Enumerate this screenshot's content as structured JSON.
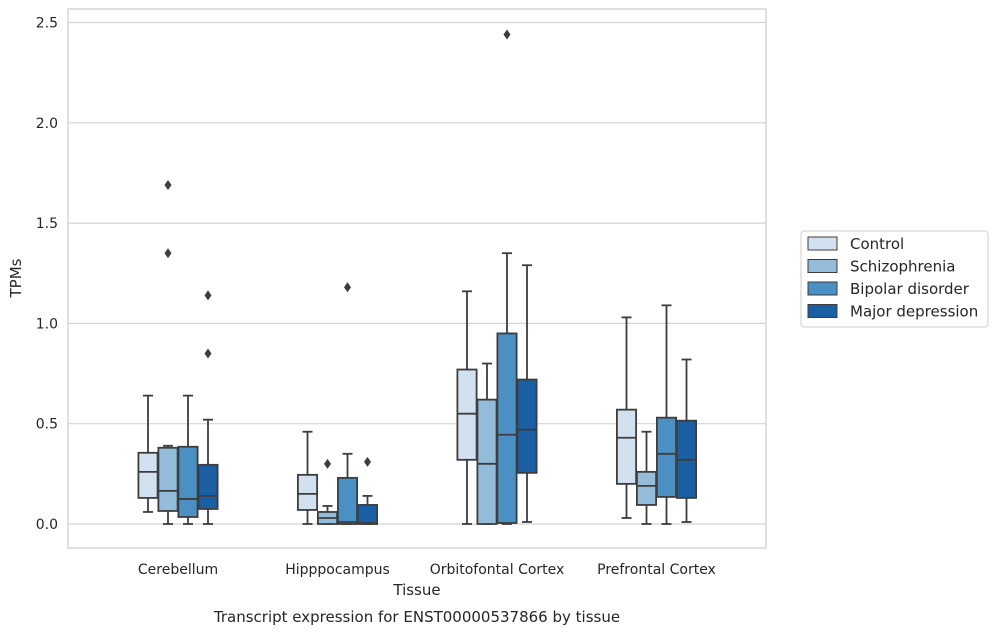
{
  "chart_data": {
    "type": "box",
    "caption": "Transcript expression for ENST00000537866 by tissue",
    "xlabel": "Tissue",
    "ylabel": "TPMs",
    "ylim": [
      -0.12,
      2.56
    ],
    "yticks": [
      0.0,
      0.5,
      1.0,
      1.5,
      2.0,
      2.5
    ],
    "ytick_labels": [
      "0.0",
      "0.5",
      "1.0",
      "1.5",
      "2.0",
      "2.5"
    ],
    "grid": "horizontal",
    "legend_position": "right",
    "categories": [
      "Cerebellum",
      "Hipppocampus",
      "Orbitofontal Cortex",
      "Prefrontal Cortex"
    ],
    "series": [
      {
        "name": "Control",
        "color": "#d1e1f0",
        "boxes": [
          {
            "whislo": 0.06,
            "q1": 0.13,
            "med": 0.26,
            "q3": 0.355,
            "whishi": 0.64,
            "fliers": []
          },
          {
            "whislo": 0.0,
            "q1": 0.07,
            "med": 0.15,
            "q3": 0.245,
            "whishi": 0.46,
            "fliers": []
          },
          {
            "whislo": 0.0,
            "q1": 0.32,
            "med": 0.55,
            "q3": 0.77,
            "whishi": 1.16,
            "fliers": []
          },
          {
            "whislo": 0.03,
            "q1": 0.2,
            "med": 0.43,
            "q3": 0.57,
            "whishi": 1.03,
            "fliers": []
          }
        ]
      },
      {
        "name": "Schizophrenia",
        "color": "#92bcd9",
        "boxes": [
          {
            "whislo": 0.0,
            "q1": 0.065,
            "med": 0.165,
            "q3": 0.38,
            "whishi": 0.39,
            "fliers": [
              1.35,
              1.69
            ]
          },
          {
            "whislo": 0.0,
            "q1": 0.0,
            "med": 0.03,
            "q3": 0.06,
            "whishi": 0.09,
            "fliers": [
              0.3
            ]
          },
          {
            "whislo": 0.0,
            "q1": 0.0,
            "med": 0.3,
            "q3": 0.62,
            "whishi": 0.8,
            "fliers": []
          },
          {
            "whislo": 0.0,
            "q1": 0.095,
            "med": 0.19,
            "q3": 0.26,
            "whishi": 0.46,
            "fliers": []
          }
        ]
      },
      {
        "name": "Bipolar disorder",
        "color": "#4a90c2",
        "boxes": [
          {
            "whislo": 0.0,
            "q1": 0.035,
            "med": 0.125,
            "q3": 0.385,
            "whishi": 0.64,
            "fliers": []
          },
          {
            "whislo": 0.0,
            "q1": 0.0,
            "med": 0.01,
            "q3": 0.23,
            "whishi": 0.35,
            "fliers": [
              1.18
            ]
          },
          {
            "whislo": 0.0,
            "q1": 0.005,
            "med": 0.445,
            "q3": 0.95,
            "whishi": 1.35,
            "fliers": [
              2.44
            ]
          },
          {
            "whislo": 0.0,
            "q1": 0.135,
            "med": 0.35,
            "q3": 0.53,
            "whishi": 1.09,
            "fliers": []
          }
        ]
      },
      {
        "name": "Major depression",
        "color": "#1a5fa3",
        "boxes": [
          {
            "whislo": 0.0,
            "q1": 0.075,
            "med": 0.14,
            "q3": 0.295,
            "whishi": 0.52,
            "fliers": [
              0.85,
              1.14
            ]
          },
          {
            "whislo": 0.0,
            "q1": 0.0,
            "med": 0.005,
            "q3": 0.095,
            "whishi": 0.14,
            "fliers": [
              0.31
            ]
          },
          {
            "whislo": 0.01,
            "q1": 0.255,
            "med": 0.47,
            "q3": 0.72,
            "whishi": 1.29,
            "fliers": []
          },
          {
            "whislo": 0.01,
            "q1": 0.13,
            "med": 0.32,
            "q3": 0.515,
            "whishi": 0.82,
            "fliers": []
          }
        ]
      }
    ]
  }
}
